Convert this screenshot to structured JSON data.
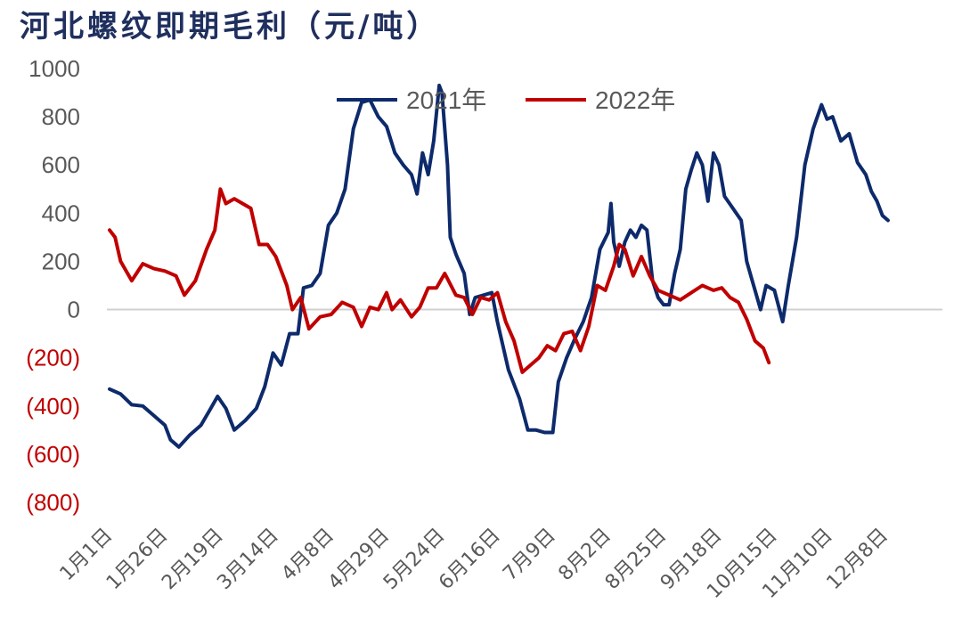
{
  "chart_data": {
    "type": "line",
    "title": "河北螺纹即期毛利（元/吨）",
    "ylim": [
      -800,
      1000
    ],
    "yticks": [
      {
        "v": 1000,
        "label": "1000"
      },
      {
        "v": 800,
        "label": "800"
      },
      {
        "v": 600,
        "label": "600"
      },
      {
        "v": 400,
        "label": "400"
      },
      {
        "v": 200,
        "label": "200"
      },
      {
        "v": 0,
        "label": "0"
      },
      {
        "v": -200,
        "label": "(200)"
      },
      {
        "v": -400,
        "label": "(400)"
      },
      {
        "v": -600,
        "label": "(600)"
      },
      {
        "v": -800,
        "label": "(800)"
      }
    ],
    "x_ticks": [
      "1月1日",
      "1月26日",
      "2月19日",
      "3月14日",
      "4月8日",
      "4月29日",
      "5月24日",
      "6月16日",
      "7月9日",
      "8月2日",
      "8月25日",
      "9月18日",
      "10月15日",
      "11月10日",
      "12月8日"
    ],
    "legend_position": "top",
    "series": [
      {
        "name": "2021年",
        "color": "#0d2a6b",
        "values": [
          [
            0,
            -330
          ],
          [
            0.2,
            -350
          ],
          [
            0.4,
            -395
          ],
          [
            0.6,
            -400
          ],
          [
            0.8,
            -440
          ],
          [
            1.0,
            -480
          ],
          [
            1.1,
            -540
          ],
          [
            1.25,
            -570
          ],
          [
            1.45,
            -520
          ],
          [
            1.65,
            -480
          ],
          [
            1.8,
            -420
          ],
          [
            1.95,
            -360
          ],
          [
            2.1,
            -410
          ],
          [
            2.25,
            -500
          ],
          [
            2.45,
            -460
          ],
          [
            2.65,
            -410
          ],
          [
            2.8,
            -320
          ],
          [
            2.95,
            -180
          ],
          [
            3.1,
            -230
          ],
          [
            3.25,
            -100
          ],
          [
            3.4,
            -100
          ],
          [
            3.5,
            90
          ],
          [
            3.65,
            100
          ],
          [
            3.8,
            150
          ],
          [
            3.95,
            350
          ],
          [
            4.1,
            400
          ],
          [
            4.25,
            500
          ],
          [
            4.4,
            750
          ],
          [
            4.55,
            860
          ],
          [
            4.7,
            870
          ],
          [
            4.85,
            800
          ],
          [
            5.0,
            760
          ],
          [
            5.15,
            650
          ],
          [
            5.3,
            600
          ],
          [
            5.45,
            560
          ],
          [
            5.55,
            480
          ],
          [
            5.65,
            650
          ],
          [
            5.75,
            560
          ],
          [
            5.85,
            700
          ],
          [
            5.95,
            930
          ],
          [
            6.0,
            900
          ],
          [
            6.1,
            600
          ],
          [
            6.15,
            300
          ],
          [
            6.25,
            230
          ],
          [
            6.4,
            150
          ],
          [
            6.5,
            -20
          ],
          [
            6.6,
            50
          ],
          [
            6.75,
            60
          ],
          [
            6.9,
            70
          ],
          [
            7.0,
            -50
          ],
          [
            7.2,
            -250
          ],
          [
            7.4,
            -370
          ],
          [
            7.55,
            -500
          ],
          [
            7.7,
            -500
          ],
          [
            7.85,
            -510
          ],
          [
            8.0,
            -510
          ],
          [
            8.1,
            -300
          ],
          [
            8.25,
            -200
          ],
          [
            8.4,
            -120
          ],
          [
            8.55,
            -50
          ],
          [
            8.7,
            50
          ],
          [
            8.85,
            250
          ],
          [
            9.0,
            320
          ],
          [
            9.05,
            440
          ],
          [
            9.1,
            280
          ],
          [
            9.2,
            180
          ],
          [
            9.3,
            280
          ],
          [
            9.4,
            330
          ],
          [
            9.5,
            300
          ],
          [
            9.6,
            350
          ],
          [
            9.7,
            330
          ],
          [
            9.8,
            120
          ],
          [
            9.9,
            50
          ],
          [
            10.0,
            20
          ],
          [
            10.1,
            20
          ],
          [
            10.2,
            150
          ],
          [
            10.3,
            250
          ],
          [
            10.4,
            500
          ],
          [
            10.5,
            580
          ],
          [
            10.6,
            650
          ],
          [
            10.7,
            600
          ],
          [
            10.8,
            450
          ],
          [
            10.9,
            650
          ],
          [
            11.0,
            600
          ],
          [
            11.1,
            470
          ],
          [
            11.25,
            420
          ],
          [
            11.4,
            370
          ],
          [
            11.5,
            200
          ],
          [
            11.6,
            120
          ],
          [
            11.75,
            0
          ],
          [
            11.85,
            100
          ],
          [
            12.0,
            80
          ],
          [
            12.15,
            -50
          ],
          [
            12.25,
            100
          ],
          [
            12.4,
            300
          ],
          [
            12.55,
            600
          ],
          [
            12.7,
            750
          ],
          [
            12.85,
            850
          ],
          [
            12.95,
            790
          ],
          [
            13.05,
            800
          ],
          [
            13.2,
            700
          ],
          [
            13.35,
            730
          ],
          [
            13.5,
            610
          ],
          [
            13.65,
            560
          ],
          [
            13.75,
            490
          ],
          [
            13.85,
            450
          ],
          [
            13.95,
            390
          ],
          [
            14.05,
            370
          ]
        ]
      },
      {
        "name": "2022年",
        "color": "#c00000",
        "values": [
          [
            0,
            330
          ],
          [
            0.1,
            300
          ],
          [
            0.2,
            200
          ],
          [
            0.4,
            120
          ],
          [
            0.6,
            190
          ],
          [
            0.8,
            170
          ],
          [
            1.0,
            160
          ],
          [
            1.2,
            140
          ],
          [
            1.35,
            60
          ],
          [
            1.55,
            120
          ],
          [
            1.75,
            250
          ],
          [
            1.9,
            330
          ],
          [
            2.0,
            500
          ],
          [
            2.1,
            440
          ],
          [
            2.25,
            460
          ],
          [
            2.4,
            440
          ],
          [
            2.55,
            420
          ],
          [
            2.7,
            270
          ],
          [
            2.85,
            270
          ],
          [
            3.0,
            220
          ],
          [
            3.2,
            100
          ],
          [
            3.3,
            0
          ],
          [
            3.45,
            50
          ],
          [
            3.6,
            -80
          ],
          [
            3.8,
            -30
          ],
          [
            4.0,
            -20
          ],
          [
            4.2,
            30
          ],
          [
            4.4,
            10
          ],
          [
            4.55,
            -70
          ],
          [
            4.7,
            10
          ],
          [
            4.85,
            0
          ],
          [
            5.0,
            70
          ],
          [
            5.1,
            0
          ],
          [
            5.25,
            40
          ],
          [
            5.45,
            -30
          ],
          [
            5.6,
            10
          ],
          [
            5.75,
            90
          ],
          [
            5.9,
            90
          ],
          [
            6.05,
            150
          ],
          [
            6.25,
            60
          ],
          [
            6.4,
            50
          ],
          [
            6.55,
            -20
          ],
          [
            6.7,
            50
          ],
          [
            6.85,
            40
          ],
          [
            7.0,
            70
          ],
          [
            7.15,
            -50
          ],
          [
            7.3,
            -130
          ],
          [
            7.45,
            -260
          ],
          [
            7.6,
            -230
          ],
          [
            7.75,
            -200
          ],
          [
            7.9,
            -150
          ],
          [
            8.05,
            -170
          ],
          [
            8.2,
            -100
          ],
          [
            8.35,
            -90
          ],
          [
            8.5,
            -170
          ],
          [
            8.65,
            -70
          ],
          [
            8.8,
            100
          ],
          [
            8.95,
            80
          ],
          [
            9.1,
            180
          ],
          [
            9.2,
            270
          ],
          [
            9.3,
            250
          ],
          [
            9.45,
            140
          ],
          [
            9.6,
            220
          ],
          [
            9.75,
            140
          ],
          [
            9.9,
            80
          ],
          [
            10.1,
            60
          ],
          [
            10.3,
            40
          ],
          [
            10.5,
            70
          ],
          [
            10.7,
            100
          ],
          [
            10.9,
            80
          ],
          [
            11.05,
            90
          ],
          [
            11.2,
            50
          ],
          [
            11.35,
            30
          ],
          [
            11.5,
            -40
          ],
          [
            11.65,
            -130
          ],
          [
            11.8,
            -160
          ],
          [
            11.9,
            -220
          ]
        ]
      }
    ]
  }
}
